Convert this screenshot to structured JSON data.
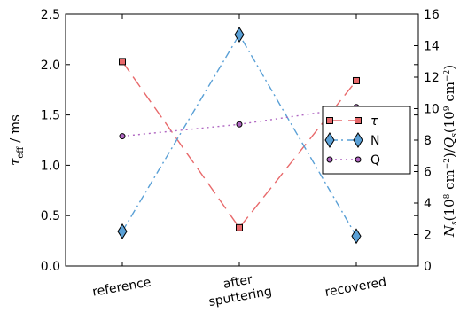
{
  "chart_data": {
    "type": "line",
    "categories": [
      "reference",
      "after\nsputtering",
      "recovered"
    ],
    "left_axis": {
      "label": "τ_eff / ms",
      "ylim": [
        0.0,
        2.5
      ],
      "ticks": [
        "0.0",
        "0.5",
        "1.0",
        "1.5",
        "2.0",
        "2.5"
      ]
    },
    "right_axis": {
      "label": "N_s (10^8 cm^-2) / Q_s (10^9 cm^-2)",
      "ylim": [
        0,
        16
      ],
      "ticks": [
        "0",
        "2",
        "4",
        "6",
        "8",
        "10",
        "12",
        "14",
        "16"
      ]
    },
    "series": [
      {
        "name": "τ",
        "axis": "left",
        "values": [
          2.03,
          0.38,
          1.84
        ],
        "color": "#e8696b",
        "marker": "square",
        "line": "dashed"
      },
      {
        "name": "N",
        "axis": "right",
        "values": [
          2.2,
          14.7,
          1.9
        ],
        "color": "#5aa0d6",
        "marker": "diamond",
        "line": "dashdot"
      },
      {
        "name": "Q",
        "axis": "right",
        "values": [
          8.25,
          9.0,
          10.1
        ],
        "color": "#b067c2",
        "marker": "circle",
        "line": "dotted"
      }
    ],
    "legend": {
      "position": "right",
      "entries": [
        "τ",
        "N",
        "Q"
      ]
    },
    "grid": false
  }
}
